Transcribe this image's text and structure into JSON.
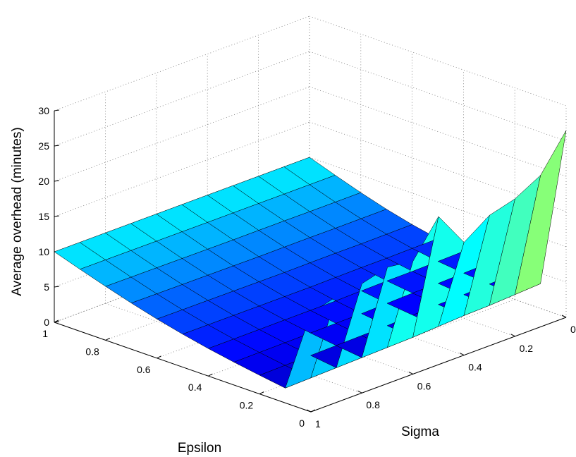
{
  "chart_data": {
    "type": "surface",
    "zlabel": "Average overhead (minutes)",
    "xlabel": "Sigma",
    "ylabel": "Epsilon",
    "zlim": [
      0,
      30
    ],
    "sigma_ticks": [
      0,
      0.2,
      0.4,
      0.6,
      0.8,
      1
    ],
    "sigma_tick_labels": [
      "0",
      "0.2",
      "0.4",
      "0.6",
      "0.8",
      "1"
    ],
    "epsilon_ticks": [
      0,
      0.2,
      0.4,
      0.6,
      0.8,
      1
    ],
    "epsilon_tick_labels": [
      "0",
      "0.2",
      "0.4",
      "0.6",
      "0.8",
      "1"
    ],
    "z_ticks": [
      0,
      5,
      10,
      15,
      20,
      25,
      30
    ],
    "z_tick_labels": [
      "0",
      "5",
      "10",
      "15",
      "20",
      "25",
      "30"
    ],
    "grid": true,
    "colormap": "jet",
    "sigma_values": [
      0,
      0.1,
      0.2,
      0.3,
      0.4,
      0.5,
      0.6,
      0.7,
      0.8,
      0.9,
      1.0
    ],
    "epsilon_values": [
      0,
      0.1,
      0.2,
      0.3,
      0.4,
      0.5,
      0.6,
      0.7,
      0.8,
      0.9,
      1.0
    ],
    "epsilon_zero_overhead": [
      26.5,
      21.5,
      19.5,
      18.5,
      16.0,
      21.0,
      16.0,
      16.5,
      15.5,
      15.0,
      14.0
    ],
    "overhead_at_epsilon_0_01": [
      3.5,
      3.3,
      3.1,
      3.0,
      2.8,
      2.6,
      2.5,
      2.4,
      2.3,
      2.2,
      2.1
    ],
    "overhead_at_epsilon_1": [
      10.0,
      10.0,
      10.0,
      10.0,
      10.0,
      10.0,
      10.0,
      10.0,
      10.0,
      10.0,
      10.0
    ]
  }
}
